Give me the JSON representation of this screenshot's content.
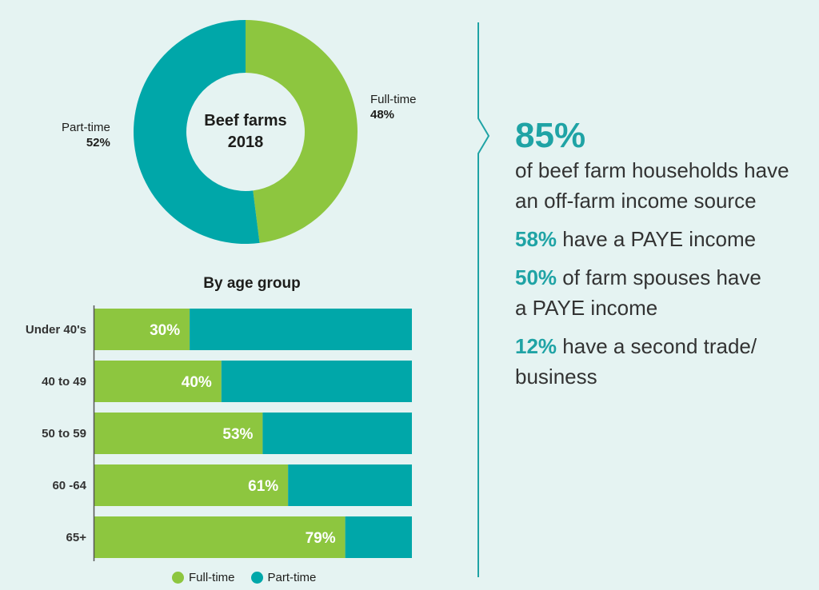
{
  "colors": {
    "full_time": "#8dc63f",
    "part_time": "#00a7a9",
    "accent": "#1fa3a5",
    "background": "#e5f3f2"
  },
  "chart_data": [
    {
      "type": "pie",
      "title": "Beef farms 2018",
      "title_line1": "Beef farms",
      "title_line2": "2018",
      "slices": [
        {
          "name": "Full-time",
          "value": 48,
          "label": "48%"
        },
        {
          "name": "Part-time",
          "value": 52,
          "label": "52%"
        }
      ]
    },
    {
      "type": "bar",
      "stacked": true,
      "orientation": "horizontal",
      "title": "By age group",
      "categories": [
        "Under 40's",
        "40 to 49",
        "50 to 59",
        "60 -64",
        "65+"
      ],
      "series": [
        {
          "name": "Full-time",
          "values": [
            30,
            40,
            53,
            61,
            79
          ],
          "labels": [
            "30%",
            "40%",
            "53%",
            "61%",
            "79%"
          ]
        },
        {
          "name": "Part-time",
          "values": [
            70,
            60,
            47,
            39,
            21
          ]
        }
      ],
      "xlim": [
        0,
        100
      ],
      "legend_position": "bottom"
    }
  ],
  "stats": {
    "headline_value": "85%",
    "headline_line1": "of beef farm households have",
    "headline_line2": "an off-farm income source",
    "items": [
      {
        "value": "58%",
        "text": " have a PAYE income",
        "text2": ""
      },
      {
        "value": "50%",
        "text": " of farm spouses have",
        "text2": "a PAYE income"
      },
      {
        "value": "12%",
        "text": " have a second trade/",
        "text2": "business"
      }
    ]
  }
}
